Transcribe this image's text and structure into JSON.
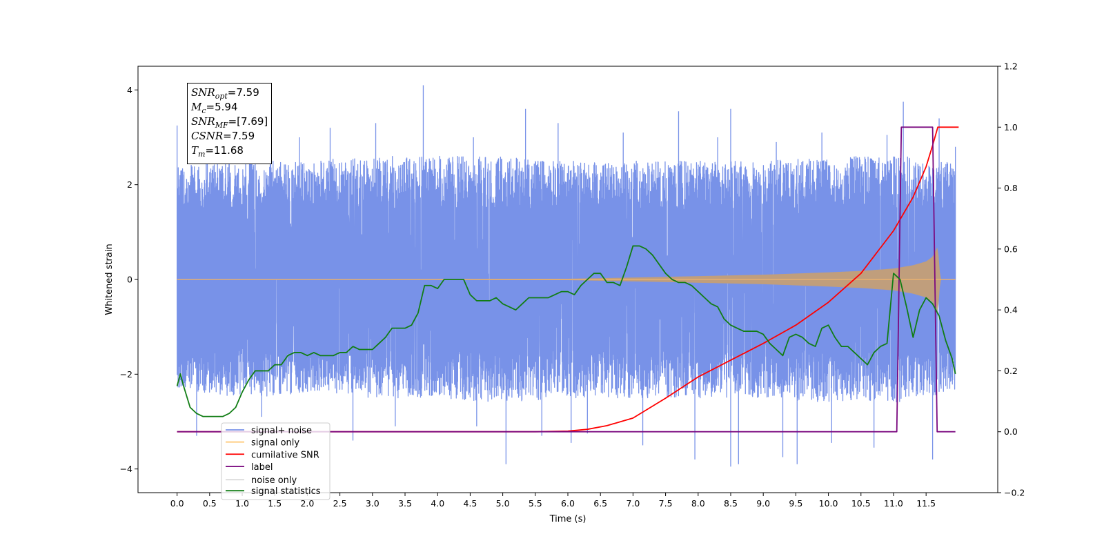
{
  "stats_box": {
    "snr_opt": {
      "sym": "SNR",
      "sub": "opt",
      "text": "=7.59"
    },
    "mc": {
      "sym": "M",
      "sub": "c",
      "text": "=5.94"
    },
    "snr_mf": {
      "sym": "SNR",
      "sub": "MF",
      "text": "=[7.69]"
    },
    "csnr": {
      "sym": "CSNR",
      "text": "=7.59"
    },
    "tm": {
      "sym": "T",
      "sub": "m",
      "text": "=11.68"
    }
  },
  "chart_data": {
    "type": "line",
    "xlabel": "Time (s)",
    "ylabel": "Whitened strain",
    "y2label": "",
    "xlim": [
      -0.6,
      12.6
    ],
    "ylim": [
      -4.5,
      4.5
    ],
    "y2lim": [
      -0.2,
      1.2
    ],
    "xticks": [
      0.0,
      0.5,
      1.0,
      1.5,
      2.0,
      2.5,
      3.0,
      3.5,
      4.0,
      4.5,
      5.0,
      5.5,
      6.0,
      6.5,
      7.0,
      7.5,
      8.0,
      8.5,
      9.0,
      9.5,
      10.0,
      10.5,
      11.0,
      11.5
    ],
    "xtick_labels": [
      "0.0",
      "0.5",
      "1.0",
      "1.5",
      "2.0",
      "2.5",
      "3.0",
      "3.5",
      "4.0",
      "4.5",
      "5.0",
      "5.5",
      "6.0",
      "6.5",
      "7.0",
      "7.5",
      "8.0",
      "8.5",
      "9.0",
      "9.5",
      "10.0",
      "10.5",
      "11.0",
      "11.5"
    ],
    "yticks": [
      -4,
      -2,
      0,
      2,
      4
    ],
    "ytick_labels": [
      "−4",
      "−2",
      "0",
      "2",
      "4"
    ],
    "y2ticks": [
      -0.2,
      0.0,
      0.2,
      0.4,
      0.6,
      0.8,
      1.0,
      1.2
    ],
    "y2tick_labels": [
      "−0.2",
      "0.0",
      "0.2",
      "0.4",
      "0.6",
      "0.8",
      "1.0",
      "1.2"
    ],
    "grid": false,
    "legend_position": "lower-left",
    "series": [
      {
        "name": "signal+ noise",
        "color": "#7892e8",
        "axis": "left",
        "style": "band",
        "x": [
          0.0,
          1.0,
          2.0,
          3.0,
          4.0,
          5.0,
          6.0,
          7.0,
          8.0,
          9.0,
          10.0,
          11.0,
          11.5,
          12.0
        ],
        "upper_envelope": [
          2.4,
          2.5,
          2.5,
          2.6,
          2.6,
          2.6,
          2.5,
          2.5,
          2.5,
          2.5,
          2.6,
          2.6,
          2.6,
          2.4
        ],
        "lower_envelope": [
          -2.3,
          -2.5,
          -2.4,
          -2.5,
          -2.5,
          -2.6,
          -2.5,
          -2.5,
          -2.5,
          -2.5,
          -2.6,
          -2.6,
          -2.5,
          -2.3
        ],
        "dense_core": 1.5,
        "peaks": [
          [
            0.0,
            3.25
          ],
          [
            0.62,
            3.05
          ],
          [
            1.15,
            2.75
          ],
          [
            1.88,
            3.0
          ],
          [
            2.35,
            3.2
          ],
          [
            3.05,
            3.3
          ],
          [
            3.78,
            4.1
          ],
          [
            4.55,
            3.0
          ],
          [
            5.35,
            3.6
          ],
          [
            5.85,
            3.3
          ],
          [
            6.85,
            3.1
          ],
          [
            7.7,
            3.55
          ],
          [
            8.3,
            3.0
          ],
          [
            8.5,
            3.6
          ],
          [
            9.2,
            2.9
          ],
          [
            9.9,
            3.1
          ],
          [
            10.9,
            3.05
          ],
          [
            11.15,
            3.75
          ],
          [
            11.7,
            3.4
          ],
          [
            11.95,
            2.8
          ]
        ],
        "troughs": [
          [
            0.3,
            -3.3
          ],
          [
            1.3,
            -2.9
          ],
          [
            2.7,
            -3.4
          ],
          [
            3.35,
            -3.1
          ],
          [
            4.6,
            -3.1
          ],
          [
            5.05,
            -3.9
          ],
          [
            5.6,
            -3.3
          ],
          [
            6.05,
            -3.45
          ],
          [
            6.3,
            -3.25
          ],
          [
            7.15,
            -3.5
          ],
          [
            7.95,
            -3.8
          ],
          [
            8.5,
            -3.95
          ],
          [
            8.62,
            -3.9
          ],
          [
            9.3,
            -3.75
          ],
          [
            9.52,
            -3.9
          ],
          [
            10.05,
            -3.45
          ],
          [
            10.7,
            -3.55
          ],
          [
            11.6,
            -3.8
          ]
        ]
      },
      {
        "name": "signal only",
        "color": "#ffc66e",
        "axis": "left",
        "style": "chirp-envelope",
        "x": [
          0.0,
          6.0,
          7.0,
          8.0,
          9.0,
          10.0,
          10.5,
          11.0,
          11.3,
          11.5,
          11.6,
          11.68,
          11.72,
          12.0
        ],
        "envelope": [
          0.0,
          0.015,
          0.04,
          0.07,
          0.1,
          0.15,
          0.18,
          0.23,
          0.3,
          0.38,
          0.48,
          0.7,
          0.0,
          0.0
        ]
      },
      {
        "name": "cumilative SNR",
        "color": "#ff0000",
        "axis": "right",
        "x": [
          0.0,
          5.5,
          6.0,
          6.3,
          6.6,
          7.0,
          7.5,
          8.0,
          8.5,
          9.0,
          9.5,
          10.0,
          10.5,
          11.0,
          11.3,
          11.5,
          11.6,
          11.68,
          12.0
        ],
        "y": [
          0.0,
          0.0,
          0.002,
          0.008,
          0.02,
          0.045,
          0.11,
          0.18,
          0.235,
          0.29,
          0.35,
          0.425,
          0.52,
          0.66,
          0.77,
          0.87,
          0.94,
          1.0,
          1.0
        ]
      },
      {
        "name": "label",
        "color": "#7b0a80",
        "axis": "right",
        "x": [
          0.0,
          11.05,
          11.12,
          11.6,
          11.67,
          11.95
        ],
        "y": [
          0.0,
          0.0,
          1.0,
          1.0,
          0.0,
          0.0
        ]
      },
      {
        "name": "noise only",
        "color": "#d8d8d8",
        "axis": "left",
        "style": "hidden"
      },
      {
        "name": "signal statistics",
        "color": "#117d14",
        "axis": "right",
        "x": [
          0.0,
          0.05,
          0.1,
          0.2,
          0.3,
          0.4,
          0.5,
          0.6,
          0.7,
          0.8,
          0.9,
          1.0,
          1.1,
          1.2,
          1.3,
          1.4,
          1.5,
          1.6,
          1.7,
          1.8,
          1.9,
          2.0,
          2.1,
          2.2,
          2.3,
          2.4,
          2.5,
          2.6,
          2.7,
          2.8,
          2.9,
          3.0,
          3.1,
          3.2,
          3.3,
          3.4,
          3.5,
          3.6,
          3.7,
          3.8,
          3.9,
          4.0,
          4.1,
          4.2,
          4.3,
          4.4,
          4.5,
          4.6,
          4.7,
          4.8,
          4.9,
          5.0,
          5.1,
          5.2,
          5.3,
          5.4,
          5.5,
          5.6,
          5.7,
          5.8,
          5.9,
          6.0,
          6.1,
          6.2,
          6.3,
          6.4,
          6.5,
          6.6,
          6.7,
          6.8,
          6.9,
          7.0,
          7.1,
          7.2,
          7.3,
          7.4,
          7.5,
          7.6,
          7.7,
          7.8,
          7.9,
          8.0,
          8.1,
          8.2,
          8.3,
          8.4,
          8.5,
          8.6,
          8.7,
          8.8,
          8.9,
          9.0,
          9.1,
          9.2,
          9.3,
          9.4,
          9.5,
          9.6,
          9.7,
          9.8,
          9.9,
          10.0,
          10.1,
          10.2,
          10.3,
          10.4,
          10.5,
          10.6,
          10.7,
          10.8,
          10.9,
          11.0,
          11.05,
          11.1,
          11.2,
          11.3,
          11.4,
          11.5,
          11.6,
          11.7,
          11.8,
          11.9,
          11.95
        ],
        "y": [
          0.15,
          0.19,
          0.15,
          0.08,
          0.06,
          0.05,
          0.05,
          0.05,
          0.05,
          0.06,
          0.08,
          0.13,
          0.17,
          0.2,
          0.2,
          0.2,
          0.22,
          0.22,
          0.25,
          0.26,
          0.26,
          0.25,
          0.26,
          0.25,
          0.25,
          0.25,
          0.26,
          0.26,
          0.28,
          0.27,
          0.27,
          0.27,
          0.29,
          0.31,
          0.34,
          0.34,
          0.34,
          0.35,
          0.39,
          0.48,
          0.48,
          0.47,
          0.5,
          0.5,
          0.5,
          0.5,
          0.45,
          0.43,
          0.43,
          0.43,
          0.44,
          0.42,
          0.41,
          0.4,
          0.42,
          0.44,
          0.44,
          0.44,
          0.44,
          0.45,
          0.46,
          0.46,
          0.45,
          0.48,
          0.5,
          0.52,
          0.52,
          0.49,
          0.49,
          0.48,
          0.54,
          0.61,
          0.61,
          0.6,
          0.58,
          0.55,
          0.52,
          0.5,
          0.49,
          0.49,
          0.48,
          0.46,
          0.44,
          0.42,
          0.41,
          0.37,
          0.35,
          0.34,
          0.33,
          0.33,
          0.33,
          0.32,
          0.29,
          0.27,
          0.25,
          0.31,
          0.32,
          0.31,
          0.29,
          0.28,
          0.34,
          0.35,
          0.31,
          0.28,
          0.28,
          0.26,
          0.24,
          0.22,
          0.26,
          0.28,
          0.29,
          0.52,
          0.51,
          0.5,
          0.41,
          0.31,
          0.4,
          0.44,
          0.42,
          0.38,
          0.3,
          0.24,
          0.19
        ]
      }
    ]
  }
}
